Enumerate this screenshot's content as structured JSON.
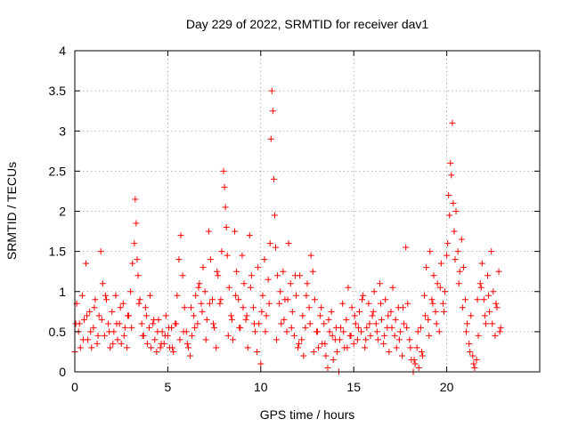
{
  "chart_data": {
    "type": "scatter",
    "title": "Day 229 of 2022, SRMTID for receiver dav1",
    "xlabel": "GPS time / hours",
    "ylabel": "SRMTID / TECUs",
    "xlim": [
      0,
      25
    ],
    "ylim": [
      0,
      4
    ],
    "xticks": [
      0,
      5,
      10,
      15,
      20
    ],
    "yticks": [
      0,
      0.5,
      1,
      1.5,
      2,
      2.5,
      3,
      3.5,
      4
    ],
    "xtick_labels": [
      "0",
      "5",
      "10",
      "15",
      "20"
    ],
    "ytick_labels": [
      "0",
      "0.5",
      "1",
      "1.5",
      "2",
      "2.5",
      "3",
      "3.5",
      "4"
    ],
    "grid": true,
    "marker": "plus",
    "series": [
      {
        "name": "SRMTID",
        "color": "#ff0000",
        "x": [
          0.0,
          0.1,
          0.2,
          0.3,
          0.4,
          0.5,
          0.6,
          0.7,
          0.8,
          0.9,
          1.0,
          1.1,
          1.2,
          1.3,
          1.4,
          1.5,
          1.6,
          1.7,
          1.8,
          1.9,
          2.0,
          2.1,
          2.2,
          2.3,
          2.4,
          2.5,
          2.6,
          2.7,
          2.8,
          2.9,
          3.0,
          3.1,
          3.2,
          3.25,
          3.3,
          3.35,
          3.4,
          3.5,
          3.6,
          3.7,
          3.8,
          3.9,
          4.0,
          4.1,
          4.2,
          4.3,
          4.4,
          4.5,
          4.6,
          4.7,
          4.8,
          4.9,
          5.0,
          5.1,
          5.2,
          5.3,
          5.4,
          5.5,
          5.6,
          5.7,
          5.8,
          5.9,
          6.0,
          6.1,
          6.2,
          6.3,
          6.4,
          6.5,
          6.6,
          6.7,
          6.8,
          6.9,
          7.0,
          7.1,
          7.2,
          7.3,
          7.4,
          7.5,
          7.6,
          7.7,
          7.8,
          7.9,
          8.0,
          8.05,
          8.1,
          8.15,
          8.2,
          8.3,
          8.4,
          8.5,
          8.6,
          8.7,
          8.8,
          8.9,
          9.0,
          9.1,
          9.2,
          9.3,
          9.4,
          9.5,
          9.6,
          9.7,
          9.8,
          9.9,
          10.0,
          10.1,
          10.2,
          10.3,
          10.4,
          10.5,
          10.55,
          10.6,
          10.65,
          10.7,
          10.75,
          10.8,
          10.9,
          11.0,
          11.1,
          11.2,
          11.3,
          11.4,
          11.5,
          11.6,
          11.7,
          11.8,
          11.9,
          12.0,
          12.1,
          12.2,
          12.3,
          12.4,
          12.5,
          12.6,
          12.7,
          12.8,
          12.9,
          13.0,
          13.1,
          13.2,
          13.3,
          13.4,
          13.5,
          13.6,
          13.7,
          13.8,
          13.9,
          14.0,
          14.1,
          14.2,
          14.3,
          14.4,
          14.5,
          14.6,
          14.7,
          14.8,
          14.9,
          15.0,
          15.1,
          15.2,
          15.3,
          15.4,
          15.5,
          15.6,
          15.7,
          15.8,
          15.9,
          16.0,
          16.1,
          16.2,
          16.3,
          16.4,
          16.5,
          16.6,
          16.7,
          16.8,
          16.9,
          17.0,
          17.1,
          17.2,
          17.3,
          17.4,
          17.5,
          17.6,
          17.7,
          17.8,
          17.9,
          18.0,
          18.1,
          18.2,
          18.3,
          18.4,
          18.5,
          18.6,
          18.7,
          18.8,
          18.9,
          19.0,
          19.1,
          19.2,
          19.3,
          19.4,
          19.5,
          19.6,
          19.7,
          19.8,
          19.9,
          20.0,
          20.05,
          20.1,
          20.15,
          20.2,
          20.25,
          20.3,
          20.35,
          20.4,
          20.5,
          20.6,
          20.7,
          20.8,
          20.9,
          21.0,
          21.1,
          21.2,
          21.3,
          21.4,
          21.5,
          21.6,
          21.7,
          21.8,
          21.9,
          22.0,
          22.1,
          22.2,
          22.3,
          22.4,
          22.5,
          22.6,
          22.7,
          22.8,
          22.9,
          0.05,
          0.25,
          0.45,
          0.65,
          0.85,
          1.05,
          1.25,
          1.45,
          1.65,
          1.85,
          2.05,
          2.25,
          2.45,
          2.65,
          2.85,
          3.05,
          3.45,
          3.65,
          3.85,
          4.05,
          4.25,
          4.45,
          4.65,
          4.85,
          5.05,
          5.25,
          5.45,
          5.65,
          5.85,
          6.05,
          6.25,
          6.45,
          6.65,
          6.85,
          7.05,
          7.25,
          7.45,
          7.65,
          7.85,
          8.25,
          8.45,
          8.65,
          8.85,
          9.05,
          9.25,
          9.45,
          9.65,
          9.85,
          10.05,
          10.25,
          10.45,
          10.85,
          11.05,
          11.25,
          11.45,
          11.65,
          11.85,
          12.05,
          12.25,
          12.45,
          12.65,
          12.85,
          13.05,
          13.25,
          13.45,
          13.65,
          13.85,
          14.05,
          14.25,
          14.45,
          14.65,
          14.85,
          15.05,
          15.25,
          15.45,
          15.65,
          15.85,
          16.05,
          16.25,
          16.45,
          16.65,
          16.85,
          17.05,
          17.25,
          17.45,
          17.65,
          17.85,
          18.05,
          18.25,
          18.45,
          18.65,
          18.85,
          19.05,
          19.25,
          19.45,
          19.65,
          19.85,
          20.45,
          20.65,
          20.85,
          21.05,
          21.25,
          21.45,
          21.65,
          21.85,
          22.05,
          22.25,
          22.45,
          22.65,
          22.85
        ],
        "y": [
          0.25,
          0.85,
          0.5,
          0.3,
          0.95,
          0.65,
          1.35,
          0.4,
          0.75,
          0.3,
          0.55,
          0.9,
          0.35,
          0.7,
          1.5,
          1.1,
          0.45,
          0.9,
          0.6,
          0.3,
          0.75,
          0.5,
          0.95,
          0.4,
          0.6,
          0.35,
          0.85,
          0.55,
          0.3,
          0.7,
          1.0,
          1.35,
          1.6,
          2.15,
          1.85,
          1.4,
          1.2,
          0.9,
          0.6,
          0.45,
          0.8,
          0.35,
          0.55,
          0.3,
          0.6,
          0.4,
          0.25,
          0.65,
          0.3,
          0.5,
          0.35,
          0.7,
          0.45,
          0.3,
          0.55,
          0.25,
          0.6,
          0.95,
          1.4,
          1.7,
          1.2,
          0.8,
          0.5,
          0.3,
          0.2,
          0.45,
          0.7,
          0.95,
          0.6,
          1.1,
          0.85,
          1.3,
          1.0,
          0.65,
          1.75,
          1.4,
          0.9,
          0.55,
          0.3,
          1.2,
          0.85,
          1.5,
          2.5,
          2.3,
          2.05,
          1.8,
          1.45,
          1.05,
          0.7,
          0.4,
          1.75,
          1.25,
          0.9,
          0.55,
          1.45,
          1.1,
          0.65,
          0.3,
          1.7,
          1.2,
          0.8,
          0.5,
          0.25,
          0.6,
          0.1,
          0.95,
          1.4,
          0.7,
          1.15,
          1.6,
          2.9,
          3.5,
          3.25,
          2.4,
          1.95,
          1.55,
          1.2,
          0.85,
          0.6,
          1.25,
          0.9,
          0.5,
          1.6,
          1.1,
          0.75,
          0.45,
          0.95,
          0.3,
          1.2,
          0.4,
          0.2,
          0.55,
          1.1,
          0.8,
          1.45,
          1.25,
          0.9,
          0.5,
          0.3,
          0.7,
          0.35,
          0.6,
          0.2,
          0.05,
          0.5,
          0.75,
          0.15,
          0.4,
          0.25,
          0.0,
          0.55,
          0.85,
          0.3,
          0.65,
          1.05,
          0.45,
          0.8,
          0.35,
          0.6,
          0.4,
          0.75,
          0.5,
          0.95,
          0.3,
          0.55,
          0.85,
          0.45,
          0.7,
          1.0,
          0.6,
          0.4,
          1.1,
          0.65,
          0.35,
          0.9,
          0.55,
          0.25,
          0.75,
          1.05,
          0.45,
          0.3,
          0.8,
          0.5,
          0.2,
          0.6,
          1.55,
          0.85,
          0.4,
          0.15,
          0.0,
          0.1,
          0.3,
          0.05,
          0.55,
          0.2,
          0.95,
          1.3,
          0.65,
          1.5,
          0.9,
          1.2,
          0.75,
          1.1,
          0.5,
          1.35,
          0.85,
          1.0,
          1.45,
          1.6,
          2.2,
          1.95,
          2.6,
          2.45,
          3.1,
          2.1,
          1.75,
          2.0,
          1.5,
          1.25,
          1.65,
          1.3,
          0.9,
          0.6,
          0.35,
          0.7,
          0.2,
          0.05,
          0.15,
          0.45,
          1.1,
          1.35,
          0.9,
          0.6,
          1.2,
          0.75,
          1.5,
          1.0,
          0.45,
          0.8,
          1.25,
          0.55,
          0.6,
          0.6,
          0.4,
          0.7,
          0.5,
          0.8,
          0.45,
          0.65,
          0.95,
          0.5,
          0.35,
          0.6,
          0.8,
          0.45,
          0.7,
          0.55,
          0.85,
          0.45,
          0.7,
          0.95,
          0.65,
          0.5,
          0.35,
          0.45,
          0.55,
          0.3,
          0.6,
          0.4,
          0.5,
          0.35,
          0.8,
          0.55,
          1.05,
          0.75,
          0.4,
          0.85,
          0.6,
          1.25,
          0.9,
          0.45,
          0.65,
          0.95,
          0.55,
          0.8,
          0.7,
          1.05,
          0.6,
          1.3,
          0.75,
          0.5,
          0.85,
          0.4,
          1.0,
          0.65,
          0.9,
          0.55,
          1.2,
          0.35,
          0.7,
          0.95,
          0.6,
          0.25,
          0.5,
          0.8,
          0.35,
          0.65,
          0.45,
          0.55,
          0.4,
          0.5,
          0.3,
          0.45,
          0.7,
          0.55,
          0.9,
          0.4,
          0.6,
          0.75,
          0.5,
          0.85,
          0.45,
          0.7,
          0.55,
          0.65,
          0.4,
          0.8,
          0.55,
          0.3,
          0.15,
          0.5,
          0.25,
          0.7,
          0.45,
          0.85,
          0.6,
          1.05,
          0.75,
          1.4,
          1.1,
          0.8,
          0.5,
          0.25,
          0.1,
          0.9,
          1.05,
          0.7,
          0.95,
          0.6,
          0.85,
          0.5
        ]
      }
    ]
  }
}
